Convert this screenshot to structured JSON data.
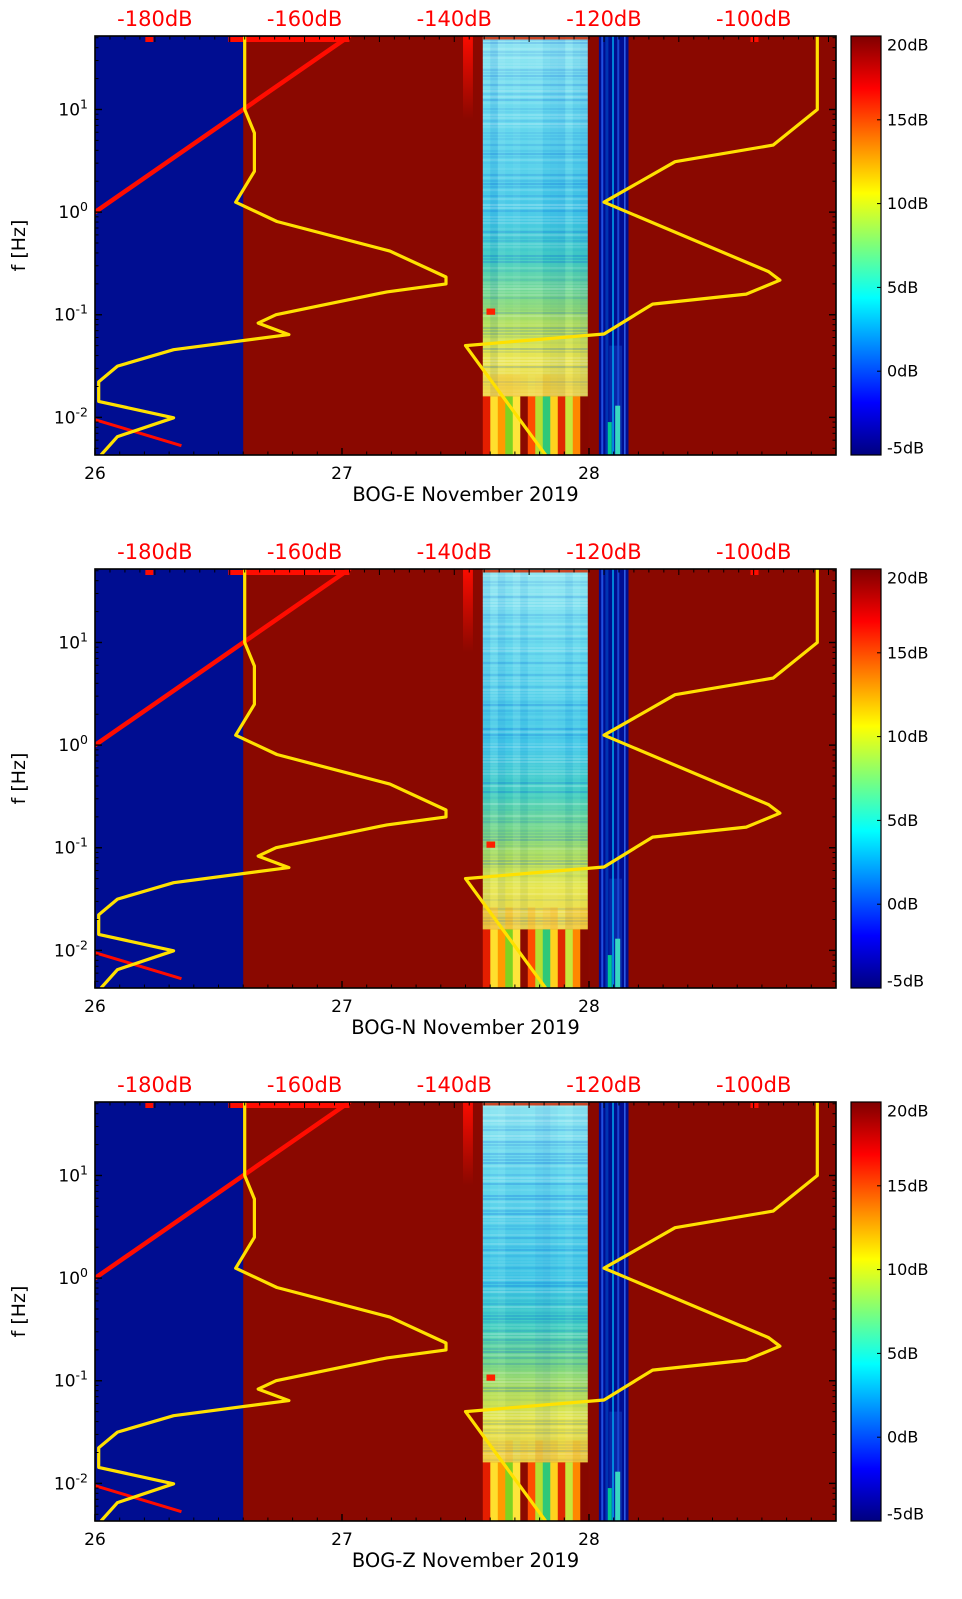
{
  "chart_data": {
    "type": "heatmap",
    "description": "Three stacked spectrogram panels (PPSD vs time) with Peterson noise-model curves plotted against a secondary top dB axis and a jet colorbar.",
    "panels": [
      {
        "id": "bog-e",
        "title": "BOG-E November 2019",
        "seed": 11
      },
      {
        "id": "bog-n",
        "title": "BOG-N November 2019",
        "seed": 27
      },
      {
        "id": "bog-z",
        "title": "BOG-Z November 2019",
        "seed": 43
      }
    ],
    "time_axis": {
      "range": [
        26,
        29
      ],
      "ticks": [
        26,
        27,
        28
      ],
      "tick_labels": [
        "26",
        "27",
        "28"
      ],
      "minor_step": 0.1
    },
    "freq_axis": {
      "label": "f [Hz]",
      "scale": "log",
      "range_hz": [
        0.0043,
        52
      ],
      "tick_values": [
        10,
        1,
        0.1,
        0.01
      ],
      "tick_base": "10",
      "tick_exponents": [
        "1",
        "0",
        "-1",
        "-2"
      ]
    },
    "top_axis": {
      "unit": "dB",
      "color": "#ff0000",
      "range_db": [
        -188,
        -89
      ],
      "ticks": [
        -180,
        -160,
        -140,
        -120,
        -100
      ],
      "tick_labels": [
        "-180dB",
        "-160dB",
        "-140dB",
        "-120dB",
        "-100dB"
      ],
      "minor_step": 2
    },
    "colorbar": {
      "range_db": [
        -5,
        20
      ],
      "ticks": [
        20,
        15,
        10,
        5,
        0,
        -5
      ],
      "tick_labels": [
        "20dB",
        "15dB",
        "10dB",
        "5dB",
        "0dB",
        "-5dB"
      ],
      "jet_stops": [
        [
          "0",
          "#7f0000"
        ],
        [
          "0.125",
          "#ff0000"
        ],
        [
          "0.375",
          "#ffff00"
        ],
        [
          "0.5",
          "#7dff7a"
        ],
        [
          "0.625",
          "#00ffff"
        ],
        [
          "0.875",
          "#0000ff"
        ],
        [
          "1",
          "#00007f"
        ]
      ]
    },
    "regions": {
      "background_color": "#8a0800",
      "quiet_block": {
        "t_range": [
          26,
          26.6
        ],
        "color": "#000d91"
      },
      "gap_stripe": {
        "t_range": [
          28.04,
          28.16
        ],
        "color": "#000d91",
        "lines": [
          {
            "fx": 0.08,
            "w": 2,
            "color": "#2050e0"
          },
          {
            "fx": 0.22,
            "w": 3,
            "color": "#0034b4"
          },
          {
            "fx": 0.45,
            "w": 1.6,
            "color": "#00a0e8"
          },
          {
            "fx": 0.62,
            "w": 2,
            "color": "#1848d0"
          },
          {
            "fx": 0.85,
            "w": 1.5,
            "color": "#3060e8"
          }
        ],
        "bottom_glow": {
          "fx_range": [
            0.35,
            0.78
          ],
          "f_range": [
            0.0043,
            0.05
          ],
          "color": "#1040c0",
          "opacity": 0.5
        },
        "bottom_patches": [
          {
            "fx": 0.3,
            "f_range": [
              0.0043,
              0.009
            ],
            "w": 4,
            "color": "#00c890"
          },
          {
            "fx": 0.55,
            "f_range": [
              0.0043,
              0.013
            ],
            "w": 5,
            "color": "#38d8c0"
          }
        ]
      },
      "band": {
        "t_range": [
          27.57,
          27.995
        ],
        "strip_top_hz": 0.016,
        "gradient": [
          [
            "0",
            "#8fe7f2"
          ],
          [
            "0.2",
            "#66daee"
          ],
          [
            "0.5",
            "#3fc8e6"
          ],
          [
            "0.62",
            "#40cfc2"
          ],
          [
            "0.72",
            "#74d88a"
          ],
          [
            "0.8",
            "#b2e058"
          ],
          [
            "0.88",
            "#e6e648"
          ],
          [
            "1",
            "#f0da4c"
          ]
        ],
        "top_line_color": "#d42800",
        "bottom_strip_colors": [
          "#e41e00",
          "#ffdf2e",
          "#ff9a00",
          "#7ed321",
          "#ffe53a",
          "#8c0a00",
          "#ff4e00",
          "#b4e033",
          "#2fc878",
          "#ffd21e",
          "#e02800",
          "#c8e63c",
          "#ff8800",
          "#870700"
        ],
        "red_dash": {
          "t_range": [
            27.585,
            27.62
          ],
          "f_range": [
            0.1,
            0.115
          ],
          "color": "#ff1e00"
        }
      }
    },
    "red_line": {
      "color": "#ff0c00",
      "width": 4.5,
      "start_time_hz": [
        26,
        1
      ],
      "end_time_hz": [
        27.03,
        52
      ],
      "top_segment_t": [
        26.54,
        27.03
      ],
      "bottom_segment_time_hz": [
        [
          26,
          0.0095
        ],
        [
          26.35,
          0.0053
        ]
      ],
      "top_marks_t": [
        26.22,
        28.67
      ],
      "streak": {
        "t_range": [
          27.49,
          27.53
        ],
        "f_bottom_hz": 8
      }
    },
    "noise_models": {
      "color": "#ffe100",
      "width": 3.2,
      "low_model": {
        "name": "NLNM",
        "points_hz_db": [
          [
            52,
            -168
          ],
          [
            10,
            -168
          ],
          [
            5.9,
            -166.7
          ],
          [
            2.5,
            -166.7
          ],
          [
            1.25,
            -169.2
          ],
          [
            0.81,
            -163.7
          ],
          [
            0.417,
            -148.6
          ],
          [
            0.233,
            -141.1
          ],
          [
            0.2,
            -141.1
          ],
          [
            0.167,
            -149
          ],
          [
            0.1,
            -163.8
          ],
          [
            0.083,
            -166.2
          ],
          [
            0.064,
            -162.1
          ],
          [
            0.0457,
            -177.5
          ],
          [
            0.0316,
            -185
          ],
          [
            0.0222,
            -187.5
          ],
          [
            0.0143,
            -187.5
          ],
          [
            0.0099,
            -177.5
          ],
          [
            0.0065,
            -185
          ],
          [
            0.0043,
            -187.2
          ]
        ]
      },
      "high_model": {
        "name": "NHNM",
        "points_hz_db": [
          [
            52,
            -91.5
          ],
          [
            10,
            -91.5
          ],
          [
            4.5,
            -97.4
          ],
          [
            3.1,
            -110.5
          ],
          [
            1.25,
            -120
          ],
          [
            0.263,
            -98
          ],
          [
            0.217,
            -96.5
          ],
          [
            0.159,
            -101
          ],
          [
            0.127,
            -113.5
          ],
          [
            0.065,
            -120
          ],
          [
            0.05,
            -138.5
          ],
          [
            0.0043,
            -127.8
          ]
        ]
      }
    }
  }
}
